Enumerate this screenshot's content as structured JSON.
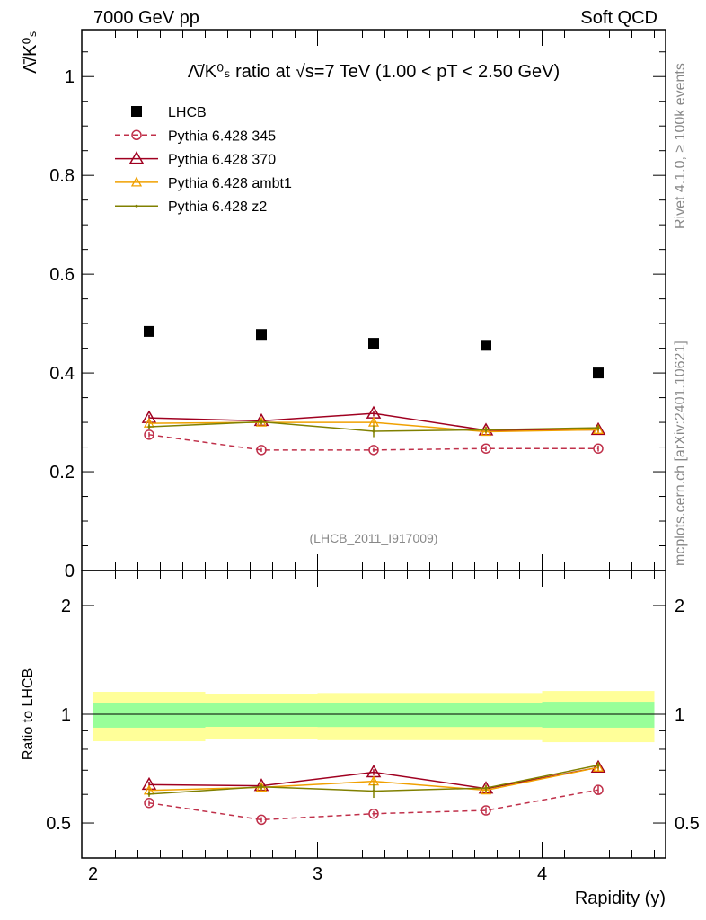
{
  "header": {
    "left": "7000 GeV pp",
    "right": "Soft QCD"
  },
  "side": {
    "top": "Rivet 4.1.0, ≥ 100k events",
    "bottom": "mcplots.cern.ch [arXiv:2401.10621]"
  },
  "watermark": "(LHCB_2011_I917009)",
  "chart_data": [
    {
      "type": "line",
      "title": "Λ̄/K⁰ₛ ratio at √s=7 TeV (1.00 < pT < 2.50 GeV)",
      "ylabel": "Λ̄/K⁰ₛ",
      "xlim": [
        1.95,
        4.55
      ],
      "ylim": [
        0,
        1.095
      ],
      "yticks": [
        "0",
        "0.2",
        "0.4",
        "0.6",
        "0.8",
        "1"
      ],
      "x": [
        2.25,
        2.75,
        3.25,
        3.75,
        4.25
      ],
      "legend_position": "top-left",
      "series": [
        {
          "name": "LHCB",
          "color": "#000000",
          "marker": "square",
          "values": [
            0.484,
            0.478,
            0.46,
            0.456,
            0.4
          ],
          "yerr": [
            0.003,
            0.003,
            0.003,
            0.003,
            0.003
          ]
        },
        {
          "name": "Pythia 6.428 345",
          "color": "#c0304a",
          "marker": "circle",
          "dash": true,
          "values": [
            0.275,
            0.244,
            0.244,
            0.247,
            0.247
          ],
          "yerr": [
            0.005,
            0.004,
            0.004,
            0.005,
            0.006
          ]
        },
        {
          "name": "Pythia 6.428 370",
          "color": "#a00020",
          "marker": "triangle",
          "values": [
            0.309,
            0.303,
            0.318,
            0.284,
            0.285
          ],
          "yerr": [
            0.006,
            0.005,
            0.006,
            0.006,
            0.006
          ]
        },
        {
          "name": "Pythia 6.428 ambt1",
          "color": "#f0a000",
          "marker": "triangle-small",
          "values": [
            0.298,
            0.3,
            0.3,
            0.281,
            0.285
          ],
          "yerr": [
            0.005,
            0.005,
            0.006,
            0.006,
            0.006
          ]
        },
        {
          "name": "Pythia 6.428 z2",
          "color": "#808000",
          "marker": "dot",
          "values": [
            0.291,
            0.301,
            0.282,
            0.285,
            0.289
          ],
          "yerr": [
            0.005,
            0.005,
            0.012,
            0.006,
            0.006
          ]
        }
      ]
    },
    {
      "type": "line",
      "ylabel": "Ratio to LHCB",
      "xlabel": "Rapidity (y)",
      "yscale": "log",
      "ylim": [
        0.4,
        2.5
      ],
      "yticks": [
        "0.5",
        "1",
        "2"
      ],
      "xticks": [
        "2",
        "3",
        "4"
      ],
      "bins": [
        [
          2.0,
          2.5
        ],
        [
          2.5,
          3.0
        ],
        [
          3.0,
          3.5
        ],
        [
          3.5,
          4.0
        ],
        [
          4.0,
          4.5
        ]
      ],
      "band_yellow": [
        [
          0.842,
          1.154
        ],
        [
          0.852,
          1.14
        ],
        [
          0.848,
          1.145
        ],
        [
          0.848,
          1.145
        ],
        [
          0.837,
          1.16
        ]
      ],
      "band_green": [
        [
          0.918,
          1.077
        ],
        [
          0.923,
          1.071
        ],
        [
          0.922,
          1.073
        ],
        [
          0.922,
          1.073
        ],
        [
          0.918,
          1.083
        ]
      ],
      "band_colors": {
        "yellow": "#ffff99",
        "green": "#99ff99"
      }
    }
  ]
}
